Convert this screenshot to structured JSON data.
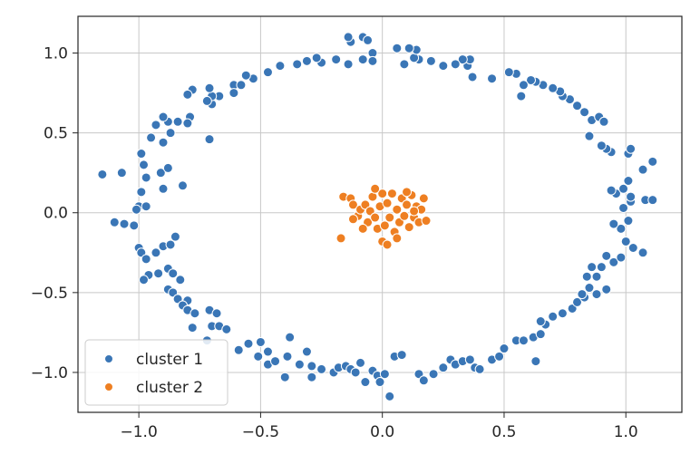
{
  "chart_data": {
    "type": "scatter",
    "title": "",
    "xlabel": "",
    "ylabel": "",
    "xlim": [
      -1.25,
      1.23
    ],
    "ylim": [
      -1.25,
      1.23
    ],
    "x_ticks": [
      -1.0,
      -0.5,
      0.0,
      0.5,
      1.0
    ],
    "x_tick_labels": [
      "−1.0",
      "−0.5",
      "0.0",
      "0.5",
      "1.0"
    ],
    "y_ticks": [
      1.0,
      0.5,
      0.0,
      -0.5,
      -1.0
    ],
    "y_tick_labels": [
      "1.0",
      "0.5",
      "0.0",
      "−0.5",
      "−1.0"
    ],
    "grid": true,
    "legend_position": "lower-left",
    "series": [
      {
        "name": "cluster 1",
        "color": "#3a76b6",
        "points": [
          [
            -1.15,
            0.24
          ],
          [
            -1.07,
            0.25
          ],
          [
            -0.99,
            0.37
          ],
          [
            -0.98,
            0.3
          ],
          [
            -0.97,
            0.22
          ],
          [
            -0.99,
            0.13
          ],
          [
            -1.0,
            0.04
          ],
          [
            -1.01,
            0.02
          ],
          [
            -0.97,
            0.04
          ],
          [
            -1.1,
            -0.06
          ],
          [
            -1.06,
            -0.07
          ],
          [
            -1.02,
            -0.08
          ],
          [
            -1.0,
            -0.22
          ],
          [
            -0.99,
            -0.25
          ],
          [
            -0.97,
            -0.29
          ],
          [
            -0.93,
            -0.25
          ],
          [
            -0.9,
            -0.21
          ],
          [
            -0.87,
            -0.2
          ],
          [
            -0.85,
            -0.15
          ],
          [
            -0.88,
            -0.35
          ],
          [
            -0.92,
            -0.38
          ],
          [
            -0.96,
            -0.39
          ],
          [
            -0.98,
            -0.42
          ],
          [
            -0.86,
            -0.38
          ],
          [
            -0.83,
            -0.42
          ],
          [
            -0.88,
            -0.48
          ],
          [
            -0.86,
            -0.5
          ],
          [
            -0.84,
            -0.54
          ],
          [
            -0.8,
            -0.55
          ],
          [
            -0.82,
            -0.58
          ],
          [
            -0.8,
            -0.61
          ],
          [
            -0.77,
            -0.63
          ],
          [
            -0.78,
            -0.72
          ],
          [
            -0.71,
            -0.61
          ],
          [
            -0.68,
            -0.63
          ],
          [
            -0.7,
            -0.71
          ],
          [
            -0.67,
            -0.71
          ],
          [
            -0.64,
            -0.73
          ],
          [
            -0.72,
            -0.8
          ],
          [
            -0.59,
            -0.86
          ],
          [
            -0.55,
            -0.82
          ],
          [
            -0.5,
            -0.81
          ],
          [
            -0.47,
            -0.87
          ],
          [
            -0.51,
            -0.9
          ],
          [
            -0.47,
            -0.95
          ],
          [
            -0.44,
            -0.93
          ],
          [
            -0.39,
            -0.9
          ],
          [
            -0.38,
            -0.78
          ],
          [
            -0.4,
            -1.03
          ],
          [
            -0.34,
            -0.95
          ],
          [
            -0.31,
            -0.87
          ],
          [
            -0.29,
            -0.96
          ],
          [
            -0.25,
            -0.98
          ],
          [
            -0.29,
            -1.03
          ],
          [
            -0.2,
            -1.0
          ],
          [
            -0.18,
            -0.97
          ],
          [
            -0.15,
            -0.96
          ],
          [
            -0.13,
            -0.98
          ],
          [
            -0.11,
            -1.0
          ],
          [
            -0.09,
            -0.94
          ],
          [
            -0.07,
            -1.06
          ],
          [
            -0.04,
            -0.99
          ],
          [
            -0.02,
            -1.02
          ],
          [
            -0.01,
            -1.06
          ],
          [
            0.01,
            -1.01
          ],
          [
            0.03,
            -1.15
          ],
          [
            0.05,
            -0.9
          ],
          [
            0.08,
            -0.89
          ],
          [
            0.15,
            -1.01
          ],
          [
            0.17,
            -1.05
          ],
          [
            0.21,
            -1.01
          ],
          [
            0.25,
            -0.97
          ],
          [
            0.28,
            -0.92
          ],
          [
            0.3,
            -0.95
          ],
          [
            0.33,
            -0.93
          ],
          [
            0.36,
            -0.92
          ],
          [
            0.38,
            -0.97
          ],
          [
            0.4,
            -0.98
          ],
          [
            0.45,
            -0.92
          ],
          [
            0.48,
            -0.9
          ],
          [
            0.5,
            -0.85
          ],
          [
            0.55,
            -0.8
          ],
          [
            0.58,
            -0.8
          ],
          [
            0.63,
            -0.93
          ],
          [
            0.62,
            -0.78
          ],
          [
            0.65,
            -0.76
          ],
          [
            0.67,
            -0.7
          ],
          [
            0.65,
            -0.68
          ],
          [
            0.7,
            -0.65
          ],
          [
            0.74,
            -0.63
          ],
          [
            0.78,
            -0.6
          ],
          [
            0.8,
            -0.56
          ],
          [
            0.83,
            -0.53
          ],
          [
            0.85,
            -0.47
          ],
          [
            0.82,
            -0.51
          ],
          [
            0.88,
            -0.51
          ],
          [
            0.92,
            -0.48
          ],
          [
            0.88,
            -0.4
          ],
          [
            0.84,
            -0.4
          ],
          [
            0.86,
            -0.34
          ],
          [
            0.9,
            -0.34
          ],
          [
            0.95,
            -0.31
          ],
          [
            0.92,
            -0.27
          ],
          [
            0.98,
            -0.28
          ],
          [
            1.03,
            -0.22
          ],
          [
            1.07,
            -0.25
          ],
          [
            1.0,
            -0.18
          ],
          [
            0.98,
            -0.1
          ],
          [
            1.01,
            -0.05
          ],
          [
            0.95,
            -0.07
          ],
          [
            0.99,
            0.03
          ],
          [
            1.02,
            0.07
          ],
          [
            1.02,
            0.1
          ],
          [
            1.08,
            0.08
          ],
          [
            1.11,
            0.08
          ],
          [
            0.96,
            0.12
          ],
          [
            0.94,
            0.14
          ],
          [
            0.99,
            0.15
          ],
          [
            1.01,
            0.2
          ],
          [
            1.07,
            0.27
          ],
          [
            1.11,
            0.32
          ],
          [
            1.01,
            0.37
          ],
          [
            1.02,
            0.4
          ],
          [
            0.94,
            0.38
          ],
          [
            0.92,
            0.4
          ],
          [
            0.9,
            0.42
          ],
          [
            0.85,
            0.48
          ],
          [
            0.86,
            0.58
          ],
          [
            0.89,
            0.6
          ],
          [
            0.91,
            0.57
          ],
          [
            0.83,
            0.63
          ],
          [
            0.8,
            0.67
          ],
          [
            0.77,
            0.71
          ],
          [
            0.74,
            0.73
          ],
          [
            0.73,
            0.76
          ],
          [
            0.7,
            0.78
          ],
          [
            0.66,
            0.8
          ],
          [
            0.63,
            0.82
          ],
          [
            0.61,
            0.83
          ],
          [
            0.58,
            0.8
          ],
          [
            0.57,
            0.73
          ],
          [
            0.55,
            0.87
          ],
          [
            0.52,
            0.88
          ],
          [
            0.45,
            0.84
          ],
          [
            0.37,
            0.85
          ],
          [
            0.35,
            0.92
          ],
          [
            0.36,
            0.96
          ],
          [
            0.33,
            0.96
          ],
          [
            0.3,
            0.93
          ],
          [
            0.25,
            0.92
          ],
          [
            0.2,
            0.95
          ],
          [
            0.15,
            0.96
          ],
          [
            0.13,
            0.97
          ],
          [
            0.09,
            0.93
          ],
          [
            0.14,
            1.02
          ],
          [
            0.11,
            1.03
          ],
          [
            0.06,
            1.03
          ],
          [
            -0.04,
            1.0
          ],
          [
            -0.04,
            0.95
          ],
          [
            -0.08,
            0.96
          ],
          [
            -0.14,
            0.93
          ],
          [
            -0.13,
            1.07
          ],
          [
            -0.14,
            1.1
          ],
          [
            -0.08,
            1.1
          ],
          [
            -0.06,
            1.08
          ],
          [
            -0.19,
            0.96
          ],
          [
            -0.25,
            0.94
          ],
          [
            -0.27,
            0.97
          ],
          [
            -0.31,
            0.95
          ],
          [
            -0.35,
            0.93
          ],
          [
            -0.42,
            0.92
          ],
          [
            -0.47,
            0.88
          ],
          [
            -0.53,
            0.84
          ],
          [
            -0.56,
            0.86
          ],
          [
            -0.61,
            0.8
          ],
          [
            -0.58,
            0.8
          ],
          [
            -0.61,
            0.75
          ],
          [
            -0.67,
            0.73
          ],
          [
            -0.7,
            0.68
          ],
          [
            -0.7,
            0.73
          ],
          [
            -0.72,
            0.7
          ],
          [
            -0.71,
            0.78
          ],
          [
            -0.78,
            0.77
          ],
          [
            -0.8,
            0.74
          ],
          [
            -0.79,
            0.6
          ],
          [
            -0.8,
            0.56
          ],
          [
            -0.84,
            0.57
          ],
          [
            -0.88,
            0.57
          ],
          [
            -0.9,
            0.6
          ],
          [
            -0.93,
            0.55
          ],
          [
            -0.95,
            0.47
          ],
          [
            -0.9,
            0.44
          ],
          [
            -0.87,
            0.5
          ],
          [
            -0.71,
            0.46
          ],
          [
            -0.9,
            0.15
          ],
          [
            -0.82,
            0.17
          ],
          [
            -0.91,
            0.25
          ],
          [
            -0.88,
            0.28
          ]
        ]
      },
      {
        "name": "cluster 2",
        "color": "#ee7f22",
        "points": [
          [
            -0.17,
            -0.16
          ],
          [
            -0.16,
            0.1
          ],
          [
            -0.13,
            0.09
          ],
          [
            -0.12,
            0.05
          ],
          [
            -0.1,
            -0.02
          ],
          [
            -0.09,
            0.02
          ],
          [
            -0.07,
            0.05
          ],
          [
            -0.06,
            -0.06
          ],
          [
            -0.05,
            0.01
          ],
          [
            -0.04,
            0.1
          ],
          [
            -0.03,
            -0.03
          ],
          [
            -0.02,
            -0.1
          ],
          [
            -0.01,
            0.04
          ],
          [
            0.0,
            -0.18
          ],
          [
            0.0,
            0.12
          ],
          [
            0.01,
            -0.08
          ],
          [
            0.02,
            0.06
          ],
          [
            0.03,
            -0.03
          ],
          [
            0.04,
            0.12
          ],
          [
            0.05,
            -0.12
          ],
          [
            0.06,
            0.02
          ],
          [
            0.07,
            -0.06
          ],
          [
            0.08,
            0.09
          ],
          [
            0.09,
            -0.02
          ],
          [
            0.1,
            0.05
          ],
          [
            0.11,
            -0.09
          ],
          [
            0.12,
            0.11
          ],
          [
            0.13,
            -0.03
          ],
          [
            0.14,
            0.04
          ],
          [
            0.15,
            -0.06
          ],
          [
            0.16,
            0.02
          ],
          [
            0.17,
            0.09
          ],
          [
            0.18,
            -0.05
          ],
          [
            -0.08,
            -0.1
          ],
          [
            -0.12,
            -0.04
          ],
          [
            0.02,
            -0.2
          ],
          [
            0.06,
            -0.16
          ],
          [
            -0.03,
            0.15
          ],
          [
            0.1,
            0.13
          ],
          [
            0.13,
            0.01
          ]
        ]
      }
    ]
  }
}
